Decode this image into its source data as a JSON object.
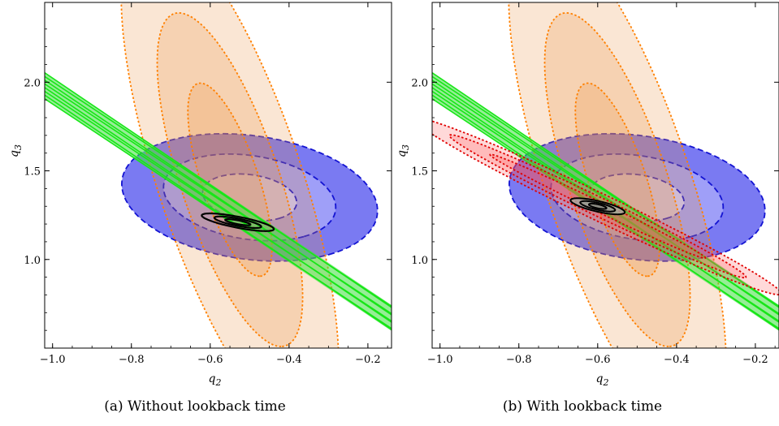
{
  "chart_data": [
    {
      "type": "contour",
      "caption": "(a) Without lookback time",
      "xlabel": "q",
      "xlabel_sub": "2",
      "ylabel": "q",
      "ylabel_sub": "3",
      "xlim": [
        -1.02,
        -0.14
      ],
      "ylim": [
        0.5,
        2.45
      ],
      "xticks": [
        -1.0,
        -0.8,
        -0.6,
        -0.4,
        -0.2
      ],
      "xtick_labels": [
        "−1.0",
        "−0.8",
        "−0.6",
        "−0.4",
        "−0.2"
      ],
      "yticks": [
        1.0,
        1.5,
        2.0
      ],
      "ytick_labels": [
        "1.0",
        "1.5",
        "2.0"
      ],
      "series": [
        {
          "kind": "ellipse-set",
          "style": "blue",
          "center": [
            -0.5,
            1.35
          ],
          "angle_deg": -58,
          "rx": [
            0.14,
            0.26,
            0.38
          ],
          "ry": [
            0.11,
            0.2,
            0.3
          ]
        },
        {
          "kind": "ellipse-set",
          "style": "orange",
          "center": [
            -0.55,
            1.45
          ],
          "angle_deg": -82,
          "rx": [
            0.55,
            0.95,
            1.45
          ],
          "ry": [
            0.075,
            0.13,
            0.19
          ]
        },
        {
          "kind": "band",
          "style": "green",
          "x_at_top": -1.02,
          "y_at_top": 1.98,
          "x_at_bottom": -0.14,
          "y_at_bottom": 0.67,
          "count": 8
        },
        {
          "kind": "ellipse-set",
          "style": "black",
          "center": [
            -0.53,
            1.21
          ],
          "angle_deg": -25,
          "rx": [
            0.035,
            0.065,
            0.1
          ],
          "ry": [
            0.01,
            0.019,
            0.029
          ]
        }
      ]
    },
    {
      "type": "contour",
      "caption": "(b) With lookback time",
      "xlabel": "q",
      "xlabel_sub": "2",
      "ylabel": "q",
      "ylabel_sub": "3",
      "xlim": [
        -1.02,
        -0.14
      ],
      "ylim": [
        0.5,
        2.45
      ],
      "xticks": [
        -1.0,
        -0.8,
        -0.6,
        -0.4,
        -0.2
      ],
      "xtick_labels": [
        "−1.0",
        "−0.8",
        "−0.6",
        "−0.4",
        "−0.2"
      ],
      "yticks": [
        1.0,
        1.5,
        2.0
      ],
      "ytick_labels": [
        "1.0",
        "1.5",
        "2.0"
      ],
      "series": [
        {
          "kind": "ellipse-set",
          "style": "blue",
          "center": [
            -0.5,
            1.35
          ],
          "angle_deg": -58,
          "rx": [
            0.14,
            0.26,
            0.38
          ],
          "ry": [
            0.11,
            0.2,
            0.3
          ]
        },
        {
          "kind": "ellipse-set",
          "style": "orange",
          "center": [
            -0.55,
            1.45
          ],
          "angle_deg": -82,
          "rx": [
            0.55,
            0.95,
            1.45
          ],
          "ry": [
            0.075,
            0.13,
            0.19
          ]
        },
        {
          "kind": "band",
          "style": "green",
          "x_at_top": -1.02,
          "y_at_top": 1.98,
          "x_at_bottom": -0.14,
          "y_at_bottom": 0.67,
          "count": 8
        },
        {
          "kind": "ellipse-set",
          "style": "red",
          "center": [
            -0.6,
            1.3
          ],
          "angle_deg": -47,
          "rx": [
            0.4,
            0.55,
            0.68
          ],
          "ry": [
            0.022,
            0.04,
            0.058
          ]
        },
        {
          "kind": "ellipse-set",
          "style": "black-gray",
          "center": [
            -0.6,
            1.3
          ],
          "angle_deg": -30,
          "rx": [
            0.025,
            0.05,
            0.078
          ],
          "ry": [
            0.01,
            0.018,
            0.027
          ]
        }
      ]
    }
  ]
}
